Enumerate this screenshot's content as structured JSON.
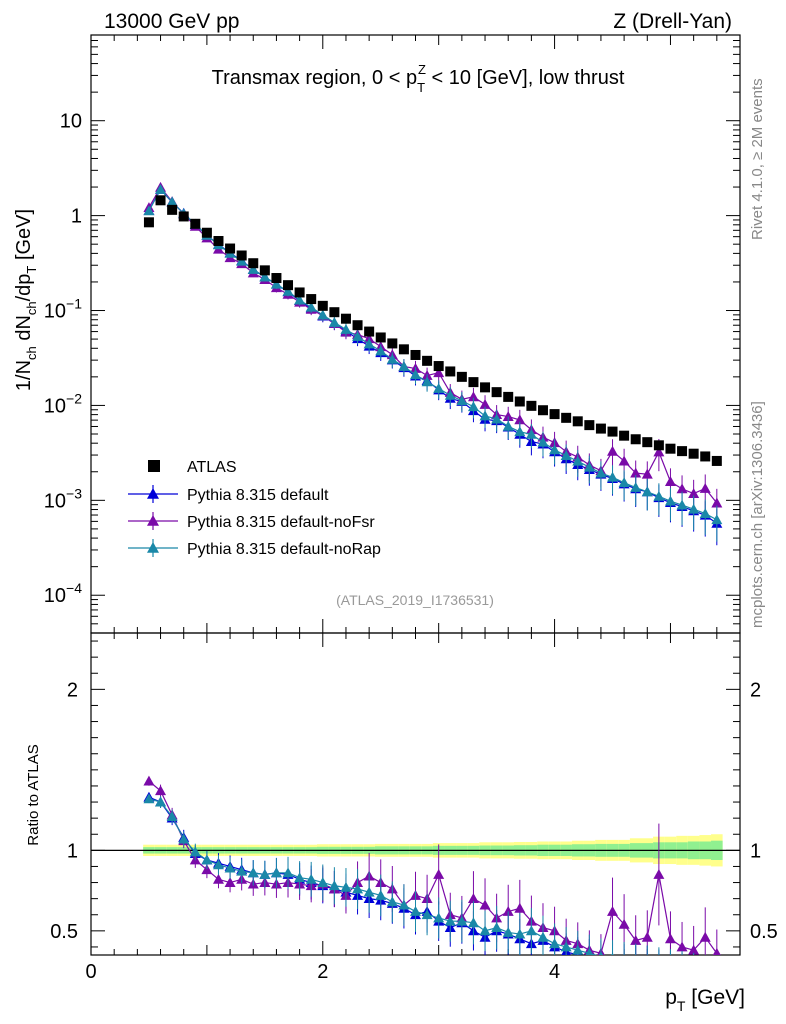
{
  "header": {
    "left": "13000 GeV pp",
    "right": "Z (Drell-Yan)"
  },
  "side_labels": {
    "rivet": "Rivet 4.1.0, ≥ 2M events",
    "mcplots": "mcplots.cern.ch [arXiv:1306.3436]"
  },
  "chart_data": {
    "type": "scatter",
    "title": "Transmax region, 0 < p_T^Z < 10 [GeV], low thrust",
    "analysis_id": "(ATLAS_2019_I1736531)",
    "xlabel": "p_T [GeV]",
    "ylabel": "1/N_ch dN_ch/dp_T [GeV]",
    "ratio_ylabel": "Ratio to ATLAS",
    "xlim": [
      0,
      5.6
    ],
    "ylim": [
      4e-05,
      80
    ],
    "yscale": "log",
    "ratio_ylim": [
      0.35,
      2.35
    ],
    "x_ticks": [
      "0",
      "2",
      "4"
    ],
    "y_ticks": [
      "10^-4",
      "10^-3",
      "10^-2",
      "10^-1",
      "1",
      "10"
    ],
    "ratio_ticks": [
      "0.5",
      "1",
      "2"
    ],
    "legend_position": "bottom-left",
    "colors": {
      "atlas": "#000000",
      "default": "#0000d8",
      "noFsr": "#7a0aa8",
      "noRap": "#1a88a8",
      "band_outer": "#ffff8c",
      "band_inner": "#90f090"
    },
    "x": [
      0.5,
      0.6,
      0.7,
      0.8,
      0.9,
      1.0,
      1.1,
      1.2,
      1.3,
      1.4,
      1.5,
      1.6,
      1.7,
      1.8,
      1.9,
      2.0,
      2.1,
      2.2,
      2.3,
      2.4,
      2.5,
      2.6,
      2.7,
      2.8,
      2.9,
      3.0,
      3.1,
      3.2,
      3.3,
      3.4,
      3.5,
      3.6,
      3.7,
      3.8,
      3.9,
      4.0,
      4.1,
      4.2,
      4.3,
      4.4,
      4.5,
      4.6,
      4.7,
      4.8,
      4.9,
      5.0,
      5.1,
      5.2,
      5.3,
      5.4
    ],
    "series": [
      {
        "name": "ATLAS",
        "marker": "square",
        "color": "#000000",
        "values": [
          0.85,
          1.45,
          1.15,
          0.98,
          0.82,
          0.66,
          0.54,
          0.45,
          0.38,
          0.315,
          0.265,
          0.22,
          0.185,
          0.155,
          0.132,
          0.112,
          0.096,
          0.082,
          0.07,
          0.06,
          0.052,
          0.045,
          0.039,
          0.034,
          0.0295,
          0.026,
          0.0228,
          0.02,
          0.0176,
          0.0155,
          0.0138,
          0.0123,
          0.011,
          0.0099,
          0.0089,
          0.0081,
          0.0074,
          0.0068,
          0.0062,
          0.0057,
          0.0053,
          0.0048,
          0.0044,
          0.0041,
          0.0038,
          0.0035,
          0.0033,
          0.0031,
          0.0029,
          0.0026
        ],
        "ratio": [
          1,
          1,
          1,
          1,
          1,
          1,
          1,
          1,
          1,
          1,
          1,
          1,
          1,
          1,
          1,
          1,
          1,
          1,
          1,
          1,
          1,
          1,
          1,
          1,
          1,
          1,
          1,
          1,
          1,
          1,
          1,
          1,
          1,
          1,
          1,
          1,
          1,
          1,
          1,
          1,
          1,
          1,
          1,
          1,
          1,
          1,
          1,
          1,
          1,
          1
        ],
        "band_inner": [
          0.02,
          0.02,
          0.02,
          0.02,
          0.02,
          0.02,
          0.02,
          0.02,
          0.02,
          0.02,
          0.02,
          0.02,
          0.02,
          0.02,
          0.02,
          0.022,
          0.022,
          0.022,
          0.022,
          0.022,
          0.025,
          0.025,
          0.025,
          0.025,
          0.025,
          0.028,
          0.028,
          0.028,
          0.028,
          0.03,
          0.03,
          0.03,
          0.032,
          0.032,
          0.035,
          0.035,
          0.035,
          0.038,
          0.038,
          0.04,
          0.04,
          0.04,
          0.045,
          0.045,
          0.05,
          0.05,
          0.05,
          0.055,
          0.055,
          0.06
        ],
        "band_outer": [
          0.035,
          0.035,
          0.035,
          0.035,
          0.035,
          0.035,
          0.035,
          0.035,
          0.035,
          0.035,
          0.035,
          0.035,
          0.035,
          0.035,
          0.035,
          0.038,
          0.038,
          0.038,
          0.038,
          0.038,
          0.04,
          0.04,
          0.04,
          0.04,
          0.04,
          0.045,
          0.045,
          0.045,
          0.045,
          0.05,
          0.05,
          0.05,
          0.052,
          0.052,
          0.055,
          0.055,
          0.055,
          0.06,
          0.06,
          0.065,
          0.065,
          0.065,
          0.075,
          0.075,
          0.085,
          0.085,
          0.09,
          0.09,
          0.095,
          0.1
        ]
      },
      {
        "name": "Pythia 8.315 default",
        "marker": "triangle",
        "color": "#0000d8",
        "ratio": [
          1.33,
          1.3,
          1.2,
          1.08,
          0.98,
          0.94,
          0.92,
          0.9,
          0.88,
          0.86,
          0.85,
          0.86,
          0.85,
          0.82,
          0.8,
          0.78,
          0.76,
          0.74,
          0.72,
          0.7,
          0.69,
          0.67,
          0.64,
          0.6,
          0.62,
          0.56,
          0.52,
          0.55,
          0.5,
          0.46,
          0.5,
          0.48,
          0.45,
          0.42,
          0.44,
          0.4,
          0.37,
          0.35,
          0.34,
          0.33,
          0.32,
          0.31,
          0.3,
          0.3,
          0.28,
          0.27,
          0.26,
          0.25,
          0.24,
          0.22
        ]
      },
      {
        "name": "Pythia 8.315 default-noFsr",
        "marker": "triangle",
        "color": "#7a0aa8",
        "ratio": [
          1.43,
          1.37,
          1.22,
          1.06,
          0.94,
          0.88,
          0.82,
          0.8,
          0.82,
          0.79,
          0.8,
          0.79,
          0.8,
          0.79,
          0.78,
          0.79,
          0.76,
          0.72,
          0.8,
          0.84,
          0.8,
          0.76,
          0.66,
          0.72,
          0.7,
          0.85,
          0.6,
          0.58,
          0.7,
          0.66,
          0.58,
          0.62,
          0.64,
          0.56,
          0.52,
          0.5,
          0.44,
          0.42,
          0.38,
          0.36,
          0.62,
          0.54,
          0.44,
          0.46,
          0.85,
          0.45,
          0.4,
          0.38,
          0.46,
          0.36
        ]
      },
      {
        "name": "Pythia 8.315 default-noRap",
        "marker": "triangle",
        "color": "#1a88a8",
        "ratio": [
          1.32,
          1.3,
          1.21,
          1.07,
          0.99,
          0.94,
          0.91,
          0.89,
          0.87,
          0.86,
          0.85,
          0.86,
          0.86,
          0.83,
          0.82,
          0.8,
          0.78,
          0.77,
          0.76,
          0.74,
          0.72,
          0.68,
          0.66,
          0.62,
          0.6,
          0.58,
          0.56,
          0.56,
          0.55,
          0.5,
          0.52,
          0.49,
          0.48,
          0.5,
          0.46,
          0.42,
          0.4,
          0.38,
          0.36,
          0.34,
          0.33,
          0.32,
          0.31,
          0.3,
          0.29,
          0.28,
          0.27,
          0.26,
          0.25,
          0.24
        ]
      }
    ]
  }
}
